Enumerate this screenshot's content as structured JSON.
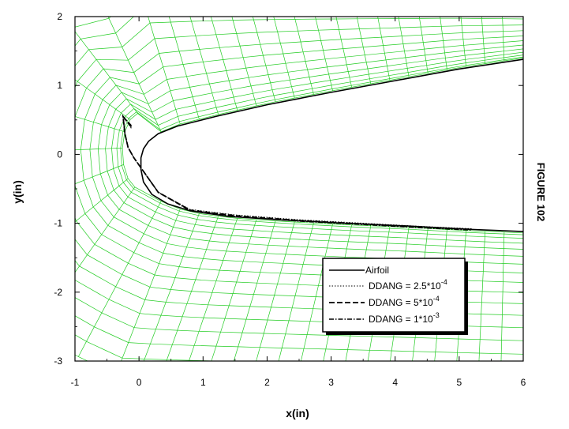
{
  "chart_data": {
    "type": "line",
    "title": "",
    "xlabel": "x(in)",
    "ylabel": "y(in)",
    "figure_label": "FIGURE 102",
    "xlim": [
      -1,
      6
    ],
    "ylim": [
      -3,
      2
    ],
    "x_ticks": [
      -1,
      0,
      1,
      2,
      3,
      4,
      5,
      6
    ],
    "y_ticks": [
      -3,
      -2,
      -1,
      0,
      1,
      2
    ],
    "grid": false,
    "legend_position": "bottom-right",
    "colors": {
      "mesh": "#22cc22",
      "axes": "#000000",
      "airfoil": "#000000"
    },
    "series": [
      {
        "name": "Airfoil",
        "style": "solid",
        "x": [
          6.0,
          5.0,
          4.0,
          3.0,
          2.0,
          1.2,
          0.6,
          0.3,
          0.15,
          0.07,
          0.03,
          0.03,
          0.07,
          0.2,
          0.45,
          0.8,
          1.4,
          2.2,
          3.2,
          4.2,
          5.2,
          6.0
        ],
        "y": [
          1.38,
          1.24,
          1.07,
          0.9,
          0.72,
          0.55,
          0.41,
          0.3,
          0.19,
          0.08,
          -0.05,
          -0.22,
          -0.4,
          -0.58,
          -0.72,
          -0.82,
          -0.9,
          -0.95,
          -1.0,
          -1.04,
          -1.09,
          -1.12
        ]
      },
      {
        "name": "DDANG = 2.5*10",
        "exponent": "-4",
        "style": "dotted",
        "x": [
          -0.12,
          -0.25,
          -0.22,
          -0.17,
          -0.08,
          0.3,
          0.8,
          1.5,
          2.5,
          3.5,
          4.5,
          5.2
        ],
        "y": [
          0.38,
          0.55,
          0.3,
          0.1,
          -0.05,
          -0.55,
          -0.8,
          -0.88,
          -0.95,
          -1.0,
          -1.05,
          -1.08
        ]
      },
      {
        "name": "DDANG = 5*10",
        "exponent": "-4",
        "style": "dashed",
        "x": [
          -0.12,
          -0.25,
          -0.22,
          -0.17,
          -0.08,
          0.3,
          0.8,
          1.5,
          2.5,
          3.5,
          4.5,
          5.2
        ],
        "y": [
          0.4,
          0.55,
          0.3,
          0.1,
          -0.05,
          -0.55,
          -0.81,
          -0.89,
          -0.96,
          -1.01,
          -1.06,
          -1.09
        ]
      },
      {
        "name": "DDANG = 1*10",
        "exponent": "-3",
        "style": "dash-dot",
        "x": [
          -0.12,
          -0.25,
          -0.22,
          -0.17,
          -0.08,
          0.3,
          0.8,
          1.5,
          2.5,
          3.5,
          4.5,
          5.2
        ],
        "y": [
          0.42,
          0.55,
          0.3,
          0.1,
          -0.05,
          -0.55,
          -0.82,
          -0.9,
          -0.97,
          -1.02,
          -1.07,
          -1.1
        ]
      }
    ]
  }
}
